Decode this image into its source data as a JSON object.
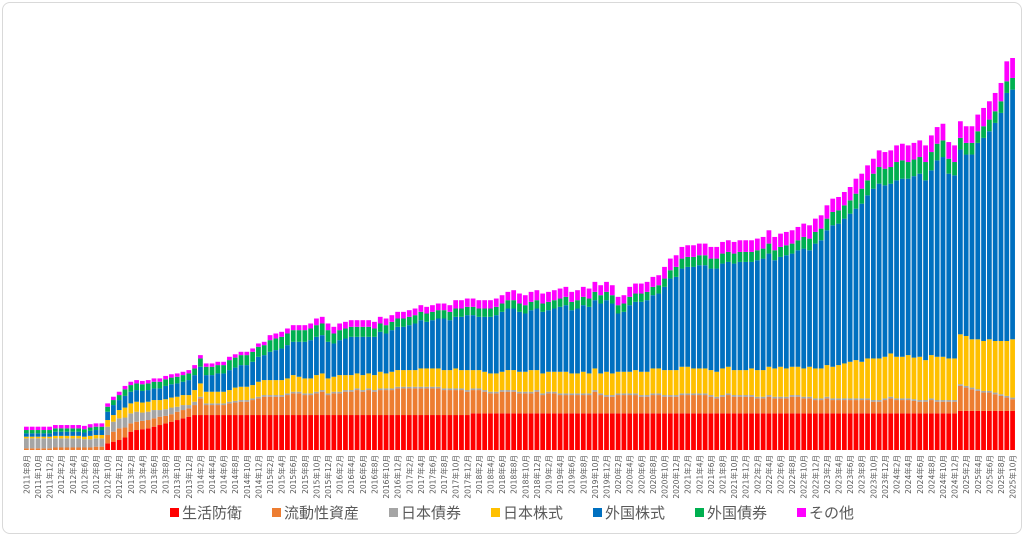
{
  "chart_data": {
    "type": "bar",
    "stacked": true,
    "title": "",
    "xlabel": "",
    "ylabel": "",
    "y_axis_visible": false,
    "grid": false,
    "legend_position": "bottom",
    "units_note": "relative units (no y-axis shown)",
    "start": {
      "year": 2011,
      "month": 8
    },
    "count": 171,
    "tick_every": 2,
    "tick_format": "{y}年{m}月",
    "series": [
      {
        "name": "生活防衛",
        "color": "#FF0000",
        "values": [
          0,
          0,
          0,
          0,
          0,
          0,
          0,
          0,
          0,
          0,
          0,
          0,
          0,
          0,
          8,
          10,
          12,
          15,
          22,
          24,
          25,
          26,
          28,
          30,
          32,
          34,
          36,
          38,
          40,
          42,
          42,
          42,
          42,
          42,
          42,
          42,
          42,
          42,
          42,
          42,
          42,
          42,
          42,
          42,
          42,
          42,
          42,
          42,
          42,
          42,
          42,
          42,
          42,
          42,
          42,
          42,
          42,
          42,
          42,
          42,
          42,
          42,
          42,
          42,
          42,
          42,
          42,
          42,
          42,
          42,
          42,
          42,
          42,
          42,
          42,
          42,
          42,
          44,
          44,
          44,
          44,
          44,
          44,
          44,
          44,
          44,
          44,
          44,
          44,
          44,
          44,
          44,
          44,
          44,
          44,
          44,
          44,
          44,
          44,
          44,
          44,
          44,
          44,
          44,
          44,
          44,
          44,
          44,
          44,
          44,
          44,
          44,
          44,
          44,
          44,
          44,
          44,
          44,
          44,
          44,
          44,
          44,
          44,
          44,
          44,
          44,
          44,
          44,
          44,
          44,
          44,
          44,
          44,
          44,
          44,
          44,
          44,
          44,
          44,
          44,
          44,
          44,
          44,
          44,
          44,
          44,
          44,
          44,
          44,
          44,
          44,
          44,
          44,
          44,
          44,
          44,
          44,
          44,
          44,
          44,
          44,
          47,
          47,
          47,
          47,
          47,
          47,
          47,
          47,
          47,
          47
        ]
      },
      {
        "name": "流動性資産",
        "color": "#ED7D31",
        "values": [
          2,
          2,
          2,
          2,
          2,
          3,
          3,
          3,
          3,
          3,
          3,
          3,
          4,
          4,
          10,
          12,
          14,
          12,
          10,
          10,
          10,
          10,
          10,
          10,
          9,
          9,
          10,
          10,
          10,
          12,
          20,
          12,
          12,
          12,
          12,
          14,
          15,
          16,
          16,
          18,
          20,
          22,
          22,
          22,
          22,
          24,
          26,
          26,
          24,
          24,
          26,
          28,
          24,
          26,
          26,
          28,
          28,
          30,
          28,
          30,
          28,
          30,
          30,
          30,
          32,
          32,
          32,
          32,
          32,
          32,
          32,
          32,
          30,
          30,
          30,
          30,
          28,
          28,
          28,
          26,
          24,
          24,
          26,
          26,
          26,
          24,
          24,
          24,
          26,
          22,
          24,
          24,
          22,
          22,
          22,
          22,
          22,
          22,
          26,
          22,
          20,
          20,
          22,
          22,
          22,
          22,
          20,
          20,
          22,
          22,
          20,
          20,
          20,
          22,
          22,
          22,
          22,
          22,
          20,
          18,
          20,
          22,
          20,
          20,
          20,
          20,
          18,
          18,
          20,
          18,
          18,
          18,
          20,
          20,
          18,
          18,
          16,
          16,
          18,
          16,
          16,
          16,
          16,
          16,
          16,
          16,
          14,
          14,
          16,
          18,
          16,
          16,
          16,
          15,
          14,
          14,
          16,
          14,
          14,
          14,
          14,
          30,
          28,
          26,
          24,
          22,
          22,
          20,
          18,
          16,
          14
        ]
      },
      {
        "name": "日本債券",
        "color": "#A5A5A5",
        "values": [
          12,
          12,
          12,
          12,
          12,
          11,
          11,
          11,
          11,
          11,
          10,
          10,
          10,
          10,
          10,
          12,
          12,
          12,
          12,
          12,
          10,
          10,
          10,
          8,
          8,
          8,
          6,
          6,
          4,
          4,
          2,
          2,
          2,
          2,
          2,
          2,
          2,
          2,
          2,
          2,
          2,
          2,
          2,
          2,
          2,
          2,
          2,
          2,
          2,
          2,
          2,
          2,
          2,
          2,
          2,
          2,
          2,
          2,
          2,
          2,
          2,
          2,
          2,
          2,
          2,
          2,
          2,
          2,
          2,
          2,
          2,
          2,
          2,
          2,
          2,
          2,
          2,
          2,
          2,
          2,
          2,
          2,
          2,
          2,
          2,
          2,
          2,
          2,
          2,
          2,
          2,
          2,
          2,
          2,
          2,
          2,
          2,
          2,
          2,
          2,
          2,
          2,
          2,
          2,
          2,
          2,
          2,
          2,
          2,
          2,
          2,
          2,
          2,
          2,
          2,
          2,
          2,
          2,
          2,
          2,
          2,
          2,
          2,
          2,
          2,
          2,
          2,
          2,
          2,
          2,
          2,
          2,
          2,
          2,
          2,
          2,
          2,
          2,
          2,
          2,
          2,
          2,
          2,
          2,
          2,
          2,
          2,
          2,
          2,
          2,
          2,
          2,
          2,
          2,
          2,
          2,
          2,
          2,
          2,
          2,
          2,
          2,
          2,
          2,
          2,
          2,
          2,
          2,
          2,
          2,
          2
        ]
      },
      {
        "name": "日本株式",
        "color": "#FFC000",
        "values": [
          2,
          2,
          2,
          2,
          2,
          3,
          3,
          3,
          3,
          3,
          3,
          4,
          4,
          4,
          8,
          8,
          10,
          12,
          12,
          12,
          12,
          12,
          12,
          12,
          12,
          12,
          12,
          12,
          12,
          14,
          16,
          14,
          14,
          14,
          14,
          14,
          16,
          16,
          16,
          16,
          18,
          18,
          18,
          18,
          18,
          18,
          20,
          18,
          18,
          18,
          20,
          20,
          18,
          18,
          20,
          18,
          18,
          18,
          18,
          18,
          18,
          20,
          18,
          20,
          20,
          20,
          20,
          20,
          22,
          22,
          22,
          22,
          22,
          22,
          24,
          22,
          24,
          22,
          22,
          22,
          22,
          22,
          22,
          24,
          24,
          24,
          24,
          26,
          24,
          24,
          24,
          24,
          26,
          26,
          24,
          24,
          26,
          24,
          26,
          24,
          28,
          26,
          26,
          26,
          26,
          28,
          28,
          28,
          30,
          30,
          30,
          30,
          30,
          32,
          32,
          30,
          30,
          30,
          30,
          30,
          32,
          32,
          30,
          30,
          30,
          32,
          32,
          32,
          34,
          34,
          36,
          34,
          34,
          34,
          34,
          36,
          36,
          36,
          38,
          38,
          40,
          42,
          44,
          46,
          44,
          48,
          50,
          50,
          50,
          52,
          50,
          50,
          52,
          50,
          52,
          48,
          52,
          52,
          52,
          50,
          50,
          60,
          60,
          58,
          60,
          60,
          62,
          62,
          64,
          66,
          70
        ]
      },
      {
        "name": "外国株式",
        "color": "#0070C0",
        "values": [
          4,
          4,
          4,
          4,
          4,
          5,
          5,
          5,
          5,
          5,
          5,
          6,
          6,
          6,
          10,
          12,
          12,
          14,
          14,
          14,
          14,
          14,
          14,
          14,
          16,
          16,
          16,
          16,
          18,
          18,
          20,
          20,
          20,
          22,
          22,
          24,
          24,
          26,
          26,
          28,
          30,
          30,
          34,
          36,
          38,
          40,
          40,
          42,
          44,
          46,
          46,
          46,
          44,
          40,
          42,
          44,
          46,
          44,
          46,
          44,
          46,
          48,
          48,
          50,
          52,
          52,
          54,
          56,
          58,
          56,
          58,
          60,
          62,
          60,
          62,
          64,
          66,
          66,
          64,
          66,
          68,
          70,
          72,
          74,
          74,
          72,
          70,
          72,
          74,
          74,
          74,
          76,
          78,
          80,
          76,
          78,
          80,
          80,
          82,
          84,
          86,
          84,
          70,
          72,
          80,
          82,
          84,
          86,
          88,
          90,
          100,
          110,
          112,
          118,
          120,
          122,
          124,
          124,
          122,
          124,
          126,
          126,
          128,
          130,
          130,
          128,
          132,
          134,
          136,
          130,
          132,
          136,
          136,
          140,
          144,
          140,
          150,
          154,
          162,
          170,
          170,
          174,
          178,
          182,
          190,
          196,
          204,
          210,
          206,
          204,
          212,
          214,
          212,
          218,
          220,
          216,
          222,
          236,
          240,
          222,
          220,
          222,
          218,
          222,
          236,
          244,
          250,
          262,
          274,
          298,
          300
        ]
      },
      {
        "name": "外国債券",
        "color": "#00B050",
        "values": [
          4,
          4,
          4,
          4,
          4,
          4,
          4,
          4,
          4,
          4,
          4,
          4,
          4,
          4,
          6,
          6,
          6,
          8,
          8,
          8,
          8,
          8,
          8,
          8,
          8,
          8,
          8,
          8,
          8,
          8,
          10,
          10,
          10,
          10,
          10,
          12,
          12,
          12,
          12,
          12,
          12,
          12,
          14,
          14,
          14,
          14,
          14,
          14,
          14,
          14,
          14,
          14,
          14,
          12,
          12,
          12,
          12,
          12,
          12,
          12,
          10,
          10,
          10,
          10,
          10,
          10,
          10,
          10,
          10,
          10,
          10,
          10,
          10,
          10,
          10,
          10,
          10,
          10,
          10,
          10,
          10,
          10,
          10,
          10,
          10,
          10,
          10,
          10,
          10,
          10,
          10,
          10,
          10,
          10,
          10,
          10,
          10,
          10,
          10,
          10,
          10,
          10,
          10,
          10,
          10,
          10,
          10,
          10,
          10,
          10,
          10,
          10,
          12,
          12,
          12,
          12,
          12,
          12,
          12,
          12,
          12,
          12,
          12,
          12,
          12,
          12,
          12,
          12,
          12,
          12,
          12,
          12,
          12,
          12,
          14,
          14,
          14,
          14,
          14,
          16,
          16,
          16,
          16,
          18,
          18,
          18,
          18,
          20,
          20,
          20,
          22,
          22,
          20,
          20,
          20,
          22,
          22,
          20,
          20,
          18,
          16,
          14,
          14,
          14,
          14,
          14,
          14,
          14,
          14,
          14,
          14
        ]
      },
      {
        "name": "その他",
        "color": "#FF00FF",
        "values": [
          4,
          4,
          4,
          4,
          4,
          4,
          4,
          4,
          4,
          4,
          4,
          4,
          4,
          4,
          4,
          4,
          4,
          4,
          4,
          4,
          4,
          4,
          4,
          4,
          4,
          4,
          4,
          4,
          4,
          4,
          4,
          4,
          4,
          4,
          4,
          4,
          4,
          4,
          4,
          4,
          4,
          4,
          6,
          6,
          6,
          6,
          6,
          6,
          6,
          6,
          8,
          8,
          8,
          8,
          8,
          8,
          8,
          8,
          8,
          8,
          8,
          8,
          8,
          8,
          8,
          8,
          8,
          8,
          8,
          8,
          8,
          8,
          8,
          8,
          10,
          10,
          10,
          10,
          10,
          10,
          10,
          10,
          10,
          10,
          12,
          12,
          12,
          12,
          12,
          12,
          12,
          12,
          12,
          12,
          12,
          12,
          12,
          12,
          12,
          12,
          12,
          12,
          10,
          10,
          12,
          12,
          12,
          12,
          12,
          12,
          14,
          14,
          14,
          14,
          14,
          14,
          14,
          14,
          14,
          14,
          14,
          14,
          14,
          14,
          14,
          14,
          14,
          14,
          16,
          16,
          16,
          16,
          16,
          16,
          16,
          16,
          16,
          16,
          16,
          16,
          16,
          16,
          16,
          18,
          18,
          18,
          18,
          20,
          20,
          20,
          20,
          20,
          20,
          20,
          20,
          20,
          20,
          20,
          20,
          20,
          20,
          20,
          20,
          20,
          20,
          22,
          22,
          22,
          22,
          24,
          24
        ]
      }
    ]
  }
}
